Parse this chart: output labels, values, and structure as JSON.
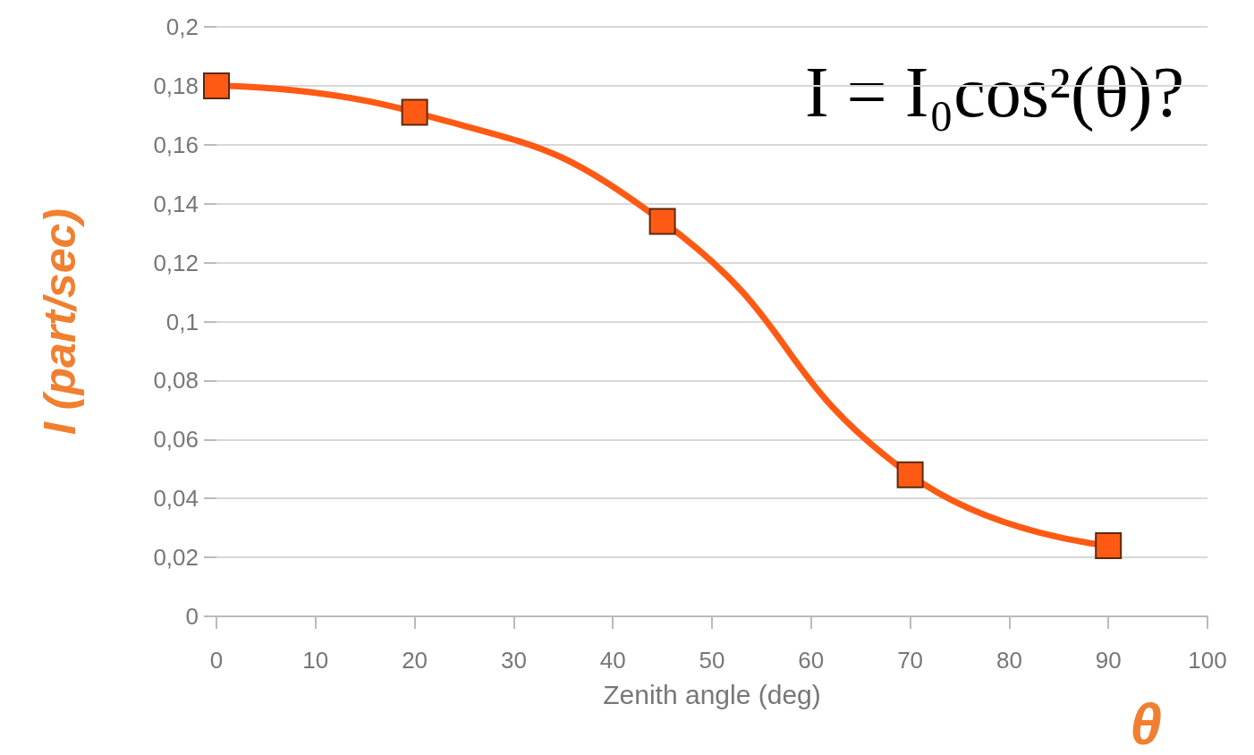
{
  "chart_data": {
    "type": "line",
    "xlabel": "Zenith angle (deg)",
    "ylabel": "I (part/sec)",
    "x": [
      0,
      20,
      45,
      70,
      90
    ],
    "series": [
      {
        "color": "#ff5a14",
        "values": [
          0.18,
          0.171,
          0.134,
          0.048,
          0.024
        ]
      }
    ],
    "xlim": [
      0,
      100
    ],
    "xticks": [
      0,
      10,
      20,
      30,
      40,
      50,
      60,
      70,
      80,
      90,
      100
    ],
    "ylim": [
      0,
      0.2
    ],
    "yticks": [
      {
        "value": 0,
        "label": "0"
      },
      {
        "value": 0.02,
        "label": "0,02"
      },
      {
        "value": 0.04,
        "label": "0,04"
      },
      {
        "value": 0.06,
        "label": "0,06"
      },
      {
        "value": 0.08,
        "label": "0,08"
      },
      {
        "value": 0.1,
        "label": "0,1"
      },
      {
        "value": 0.12,
        "label": "0,12"
      },
      {
        "value": 0.14,
        "label": "0,14"
      },
      {
        "value": 0.16,
        "label": "0,16"
      },
      {
        "value": 0.18,
        "label": "0,18"
      },
      {
        "value": 0.2,
        "label": "0,2"
      }
    ],
    "grid": "y",
    "marker": "square",
    "line_style": "solid",
    "annotations": [
      "I = I₀cos²(θ)?",
      "θ"
    ]
  }
}
